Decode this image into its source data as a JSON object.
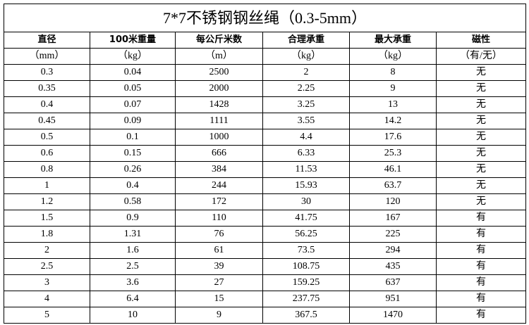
{
  "title": "7*7不锈钢钢丝绳（0.3-5mm）",
  "table": {
    "header": [
      "直径",
      "100米重量",
      "每公斤米数",
      "合理承重",
      "最大承重",
      "磁性"
    ],
    "units": [
      "（mm）",
      "（kg）",
      "（m）",
      "（kg）",
      "（kg）",
      "（有/无）"
    ],
    "rows": [
      [
        "0.3",
        "0.04",
        "2500",
        "2",
        "8",
        "无"
      ],
      [
        "0.35",
        "0.05",
        "2000",
        "2.25",
        "9",
        "无"
      ],
      [
        "0.4",
        "0.07",
        "1428",
        "3.25",
        "13",
        "无"
      ],
      [
        "0.45",
        "0.09",
        "1111",
        "3.55",
        "14.2",
        "无"
      ],
      [
        "0.5",
        "0.1",
        "1000",
        "4.4",
        "17.6",
        "无"
      ],
      [
        "0.6",
        "0.15",
        "666",
        "6.33",
        "25.3",
        "无"
      ],
      [
        "0.8",
        "0.26",
        "384",
        "11.53",
        "46.1",
        "无"
      ],
      [
        "1",
        "0.4",
        "244",
        "15.93",
        "63.7",
        "无"
      ],
      [
        "1.2",
        "0.58",
        "172",
        "30",
        "120",
        "无"
      ],
      [
        "1.5",
        "0.9",
        "110",
        "41.75",
        "167",
        "有"
      ],
      [
        "1.8",
        "1.31",
        "76",
        "56.25",
        "225",
        "有"
      ],
      [
        "2",
        "1.6",
        "61",
        "73.5",
        "294",
        "有"
      ],
      [
        "2.5",
        "2.5",
        "39",
        "108.75",
        "435",
        "有"
      ],
      [
        "3",
        "3.6",
        "27",
        "159.25",
        "637",
        "有"
      ],
      [
        "4",
        "6.4",
        "15",
        "237.75",
        "951",
        "有"
      ],
      [
        "5",
        "10",
        "9",
        "367.5",
        "1470",
        "有"
      ]
    ]
  }
}
